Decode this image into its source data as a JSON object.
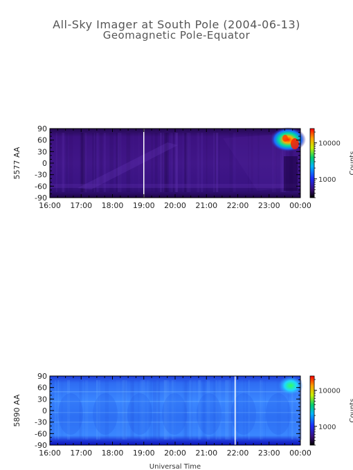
{
  "title": "All-Sky Imager at South Pole (2004-06-13)",
  "subtitle": "Geomagnetic Pole-Equator",
  "chart_data": [
    {
      "type": "heatmap",
      "ylabel": "5577 AA",
      "xlabel": "",
      "x_ticks": [
        "16:00",
        "17:00",
        "18:00",
        "19:00",
        "20:00",
        "21:00",
        "22:00",
        "23:00",
        "00:00"
      ],
      "y_ticks": [
        "90",
        "60",
        "30",
        "0",
        "-30",
        "-60",
        "-90"
      ],
      "ylim": [
        -90,
        90
      ],
      "colorbar": {
        "label": "Counts",
        "ticks": [
          "10000",
          "1000"
        ],
        "scale": "log"
      },
      "gap_line_time": "19:00",
      "colors": {
        "background": "#3a0f78",
        "edge": "#1e0548",
        "band": "#5a2ba6"
      }
    },
    {
      "type": "heatmap",
      "ylabel": "5890 AA",
      "xlabel": "Universal Time",
      "x_ticks": [
        "16:00",
        "17:00",
        "18:00",
        "19:00",
        "20:00",
        "21:00",
        "22:00",
        "23:00",
        "00:00"
      ],
      "y_ticks": [
        "90",
        "60",
        "30",
        "0",
        "-30",
        "-60",
        "-90"
      ],
      "ylim": [
        -90,
        90
      ],
      "colorbar": {
        "label": "Counts",
        "ticks": [
          "10000",
          "1000"
        ],
        "scale": "log"
      },
      "gap_line_time": "21:55",
      "colors": {
        "background": "#2f6ff0",
        "edge": "#1f34d8",
        "band": "#5a9cff"
      }
    }
  ]
}
